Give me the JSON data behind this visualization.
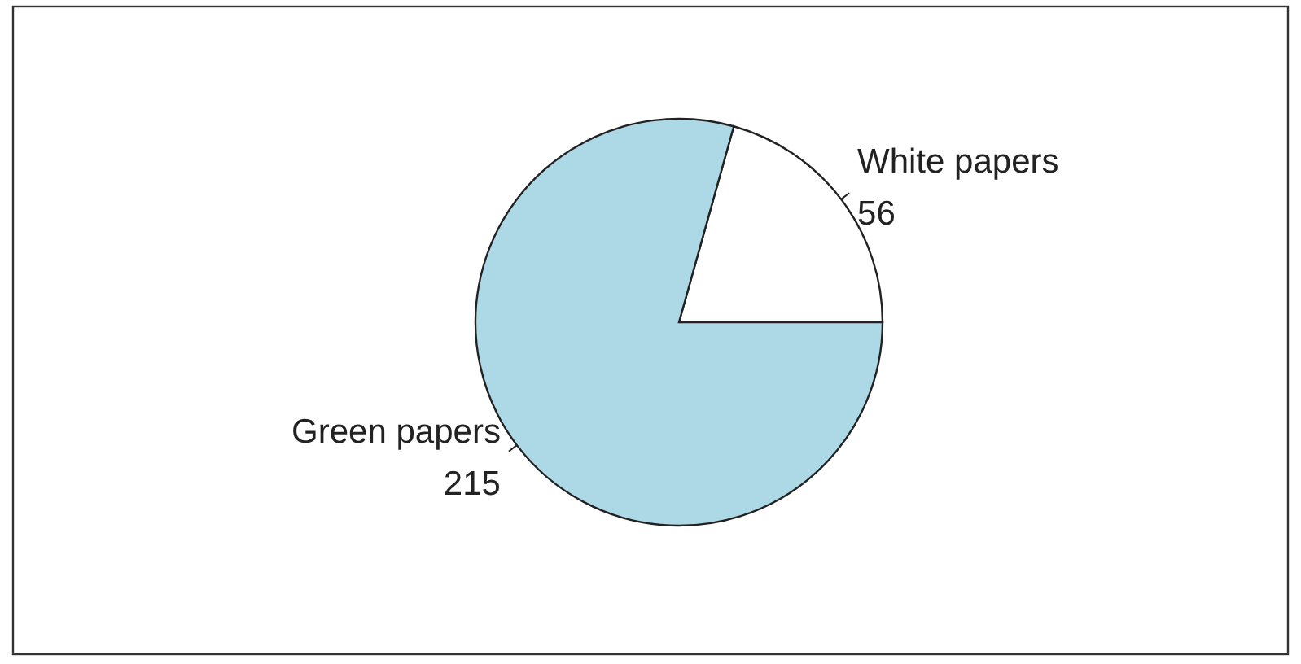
{
  "chart_data": {
    "type": "pie",
    "categories": [
      "White papers",
      "Green papers"
    ],
    "values": [
      56,
      215
    ],
    "colors": [
      "#ffffff",
      "#add8e6"
    ],
    "data_labels": true
  }
}
